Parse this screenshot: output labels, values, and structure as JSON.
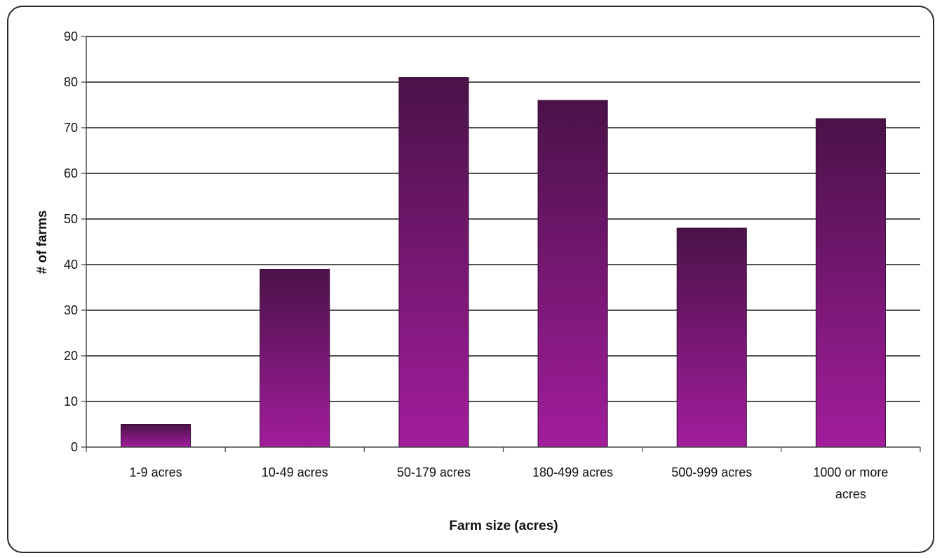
{
  "chart_data": {
    "type": "bar",
    "title": "",
    "xlabel": "Farm size (acres)",
    "ylabel": "# of farms",
    "categories": [
      "1-9 acres",
      "10-49 acres",
      "50-179 acres",
      "180-499 acres",
      "500-999 acres",
      "1000 or more acres"
    ],
    "category_lines": [
      [
        "1-9 acres"
      ],
      [
        "10-49 acres"
      ],
      [
        "50-179 acres"
      ],
      [
        "180-499 acres"
      ],
      [
        "500-999 acres"
      ],
      [
        "1000 or more",
        "acres"
      ]
    ],
    "values": [
      5,
      39,
      81,
      76,
      48,
      72
    ],
    "ylim": [
      0,
      90
    ],
    "yticks": [
      0,
      10,
      20,
      30,
      40,
      50,
      60,
      70,
      80,
      90
    ],
    "grid": true,
    "legend": "none",
    "colors": {
      "bar_top": "#4a1248",
      "bar_bottom": "#a21d9c",
      "bar_edge": "#3a0c38",
      "grid": "#1a1a1a"
    }
  }
}
